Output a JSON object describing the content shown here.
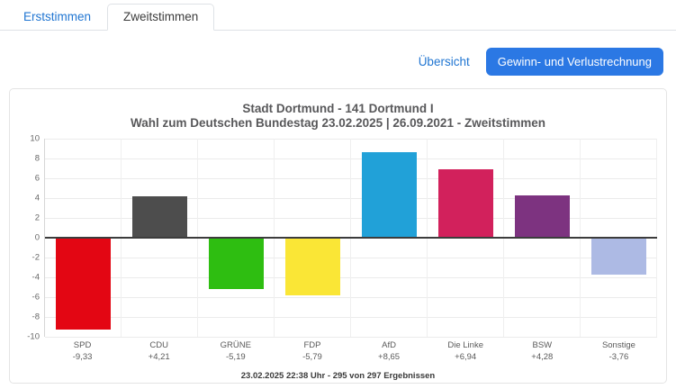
{
  "tabs": [
    {
      "label": "Erststimmen",
      "active": false
    },
    {
      "label": "Zweitstimmen",
      "active": true
    }
  ],
  "toolbar": {
    "overview_link": "Übersicht",
    "gain_loss_button": "Gewinn- und Verlustrechnung"
  },
  "chart_data": {
    "type": "bar",
    "title": "Stadt Dortmund - 141 Dortmund I",
    "subtitle": "Wahl zum Deutschen Bundestag 23.02.2025  | 26.09.2021 - Zweitstimmen",
    "categories": [
      "SPD",
      "CDU",
      "GRÜNE",
      "FDP",
      "AfD",
      "Die Linke",
      "BSW",
      "Sonstige"
    ],
    "values": [
      -9.33,
      4.21,
      -5.19,
      -5.79,
      8.65,
      6.94,
      4.28,
      -3.76
    ],
    "value_labels": [
      "-9,33",
      "+4,21",
      "-5,19",
      "-5,79",
      "+8,65",
      "+6,94",
      "+4,28",
      "-3,76"
    ],
    "colors": [
      "#e30613",
      "#4d4d4d",
      "#2ebe11",
      "#fae636",
      "#21a1d8",
      "#d2215c",
      "#7d3380",
      "#adbae4"
    ],
    "ylim": [
      -10,
      10
    ],
    "ytick_step": 2,
    "grid": true,
    "legend": "none",
    "footer": "23.02.2025 22:38 Uhr - 295 von 297 Ergebnissen"
  },
  "colors": {
    "accent": "#2b78e4",
    "link": "#2176d2",
    "tab_border": "#dee2e6",
    "zero_line": "#3c3c3c",
    "title_text": "#58585a"
  }
}
